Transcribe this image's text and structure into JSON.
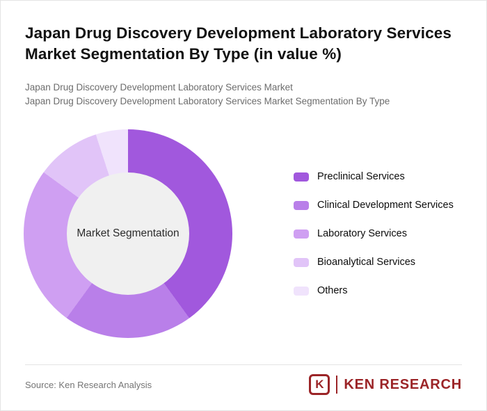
{
  "title": "Japan Drug Discovery Development Laboratory Services Market Segmentation By Type (in value %)",
  "subtitle_lines": [
    "Japan Drug Discovery Development Laboratory Services Market",
    "Japan Drug Discovery Development Laboratory Services Market Segmentation By Type"
  ],
  "chart_data": {
    "type": "pie",
    "donut": true,
    "center_label": "Market Segmentation",
    "categories": [
      "Preclinical Services",
      "Clinical Development Services",
      "Laboratory Services",
      "Bioanalytical Services",
      "Others"
    ],
    "values": [
      40,
      20,
      25,
      10,
      5
    ],
    "colors": [
      "#a158dd",
      "#b97fe9",
      "#cf9ff2",
      "#e1c4f8",
      "#f0e3fc"
    ],
    "legend_position": "right",
    "start_angle_deg": 0,
    "direction": "clockwise",
    "center_circle_color": "#f0f0f0"
  },
  "footer": {
    "source": "Source: Ken Research Analysis",
    "logo": {
      "k_letter": "K",
      "brand": "KEN RESEARCH",
      "brand_color": "#9b2427"
    }
  }
}
